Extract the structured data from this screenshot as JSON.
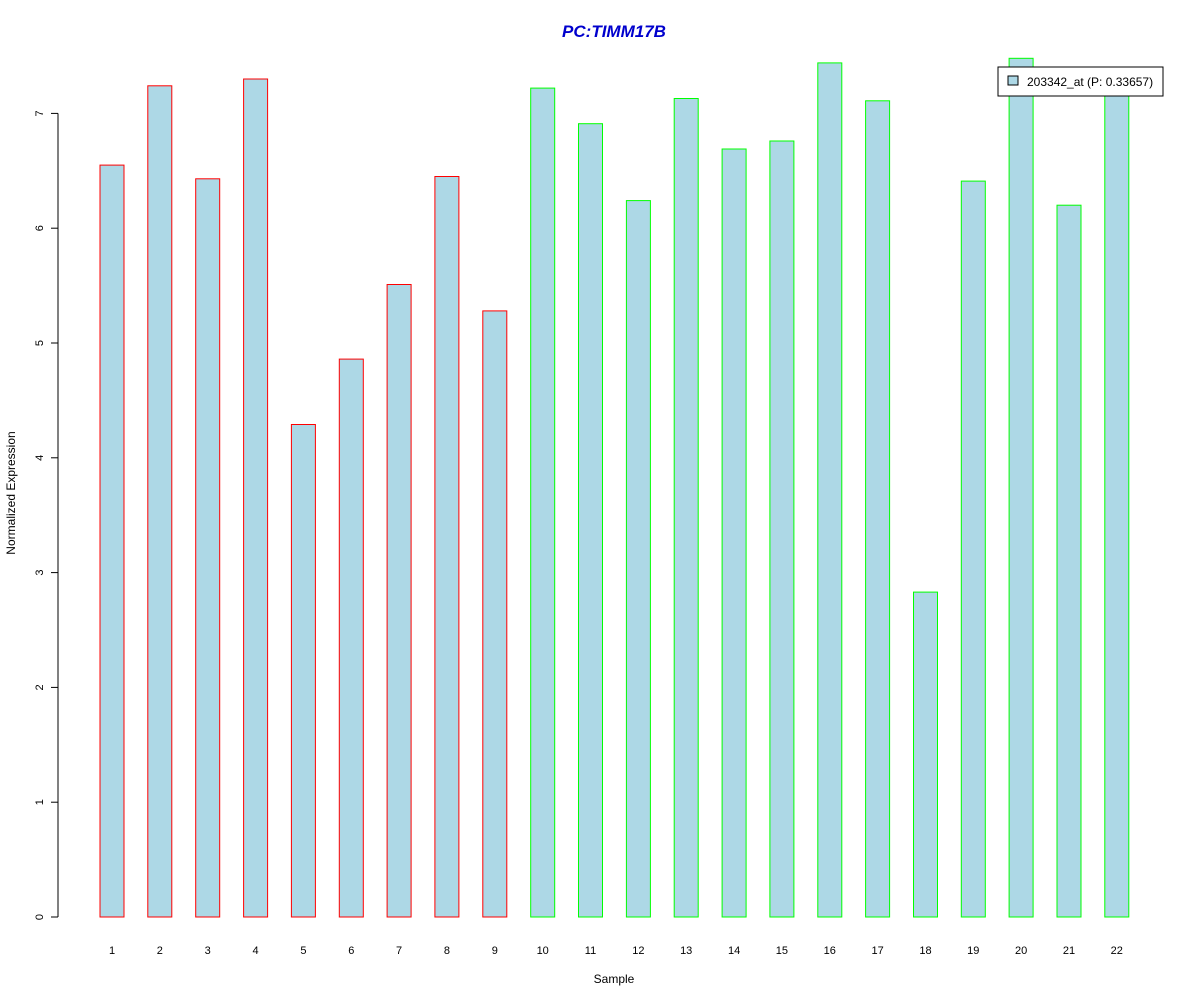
{
  "chart_data": {
    "type": "bar",
    "title": "PC:TIMM17B",
    "xlabel": "Sample",
    "ylabel": "Normalized Expression",
    "categories": [
      "1",
      "2",
      "3",
      "4",
      "5",
      "6",
      "7",
      "8",
      "9",
      "10",
      "11",
      "12",
      "13",
      "14",
      "15",
      "16",
      "17",
      "18",
      "19",
      "20",
      "21",
      "22"
    ],
    "values": [
      6.55,
      7.24,
      6.43,
      7.3,
      4.29,
      4.86,
      5.51,
      6.45,
      5.28,
      7.22,
      6.91,
      6.24,
      7.13,
      6.69,
      6.76,
      7.44,
      7.11,
      2.83,
      6.41,
      7.48,
      6.2,
      7.2
    ],
    "groups": [
      "red",
      "red",
      "red",
      "red",
      "red",
      "red",
      "red",
      "red",
      "red",
      "green",
      "green",
      "green",
      "green",
      "green",
      "green",
      "green",
      "green",
      "green",
      "green",
      "green",
      "green",
      "green"
    ],
    "ylim": [
      0,
      7.5
    ],
    "yticks": [
      0,
      1,
      2,
      3,
      4,
      5,
      6,
      7
    ],
    "grid": false,
    "legend": {
      "placement": "top-right",
      "entries": [
        "203342_at (P: 0.33657)"
      ]
    },
    "colors": {
      "bar_fill": "#add8e6",
      "group_red": "#ff0000",
      "group_green": "#00ff00",
      "title": "#0000cd",
      "axis": "#000000"
    }
  }
}
